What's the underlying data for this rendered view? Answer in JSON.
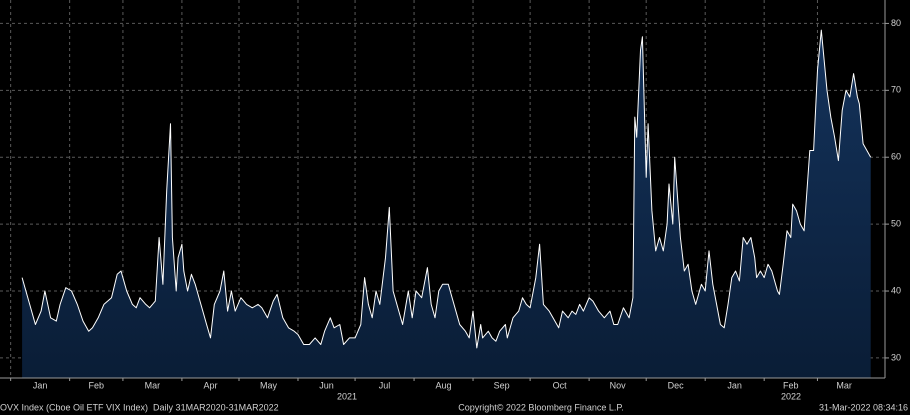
{
  "chart_data": {
    "type": "area",
    "color": "#0c2340",
    "line_color": "#ffffff",
    "grid": true,
    "xlim": [
      -5.6,
      459.5
    ],
    "ylim": [
      27,
      83.5
    ],
    "yticks": [
      30,
      40,
      50,
      60,
      70,
      80
    ],
    "xticks": [
      {
        "value": 0,
        "label": "Jan"
      },
      {
        "value": 31,
        "label": "Feb"
      },
      {
        "value": 59,
        "label": "Mar"
      },
      {
        "value": 90,
        "label": "Apr"
      },
      {
        "value": 120,
        "label": "May"
      },
      {
        "value": 151,
        "label": "Jun"
      },
      {
        "value": 181,
        "label": "Jul"
      },
      {
        "value": 212,
        "label": "Aug"
      },
      {
        "value": 243,
        "label": "Sep"
      },
      {
        "value": 273,
        "label": "Oct"
      },
      {
        "value": 304,
        "label": "Nov"
      },
      {
        "value": 334,
        "label": "Dec"
      },
      {
        "value": 365,
        "label": "Jan"
      },
      {
        "value": 396,
        "label": "Feb"
      },
      {
        "value": 424,
        "label": "Mar"
      }
    ],
    "year_labels": [
      "2021",
      "2022"
    ],
    "x": [
      6,
      10,
      13,
      16,
      18,
      21,
      24,
      26,
      29,
      32,
      35,
      38,
      41,
      43,
      46,
      49,
      53,
      56,
      58,
      61,
      64,
      66,
      68,
      71,
      73,
      76,
      78,
      80,
      82,
      84,
      85,
      87,
      88,
      90,
      91,
      93,
      95,
      97,
      100,
      103,
      105,
      107,
      110,
      112,
      114,
      116,
      118,
      121,
      124,
      127,
      130,
      132,
      135,
      138,
      140,
      143,
      146,
      149,
      151,
      154,
      157,
      160,
      163,
      165,
      168,
      170,
      173,
      175,
      178,
      181,
      184,
      186,
      188,
      190,
      192,
      194,
      197,
      199,
      201,
      203,
      206,
      209,
      211,
      213,
      216,
      218,
      219,
      221,
      223,
      225,
      227,
      230,
      232,
      234,
      236,
      239,
      241,
      243,
      245,
      247,
      248,
      251,
      253,
      255,
      257,
      260,
      261,
      264,
      267,
      269,
      271,
      273,
      276,
      278,
      280,
      283,
      285,
      288,
      290,
      293,
      295,
      297,
      299,
      301,
      304,
      306,
      309,
      312,
      315,
      317,
      319,
      322,
      325,
      327,
      328,
      329,
      331,
      332,
      334,
      335,
      337,
      339,
      341,
      343,
      345,
      346,
      348,
      349,
      351,
      352,
      354,
      356,
      358,
      360,
      363,
      365,
      367,
      369,
      371,
      373,
      375,
      377,
      379,
      381,
      383,
      385,
      387,
      389,
      391,
      392,
      394,
      396,
      398,
      400,
      403,
      404,
      406,
      408,
      410,
      411,
      413,
      415,
      417,
      418,
      420,
      422,
      424,
      426,
      427,
      429,
      431,
      433,
      435,
      437,
      439,
      441,
      443,
      445,
      446,
      448,
      450,
      452
    ],
    "values": [
      42,
      38,
      35,
      37,
      40,
      36,
      35.5,
      38,
      40.5,
      40,
      38,
      35.5,
      34,
      34.5,
      36,
      38,
      39,
      42.5,
      43,
      40,
      38,
      37.5,
      39,
      38,
      37.5,
      38.5,
      48,
      41,
      55,
      65,
      48,
      40,
      45,
      47,
      43,
      40,
      42.5,
      41,
      38,
      35,
      33,
      38,
      40,
      43,
      37,
      40,
      37,
      39,
      38,
      37.5,
      38,
      37.5,
      36,
      38.5,
      39.5,
      36,
      34.5,
      34,
      33.5,
      32,
      32,
      33,
      32,
      34,
      36,
      34.5,
      35,
      32,
      33,
      33,
      35,
      42,
      38,
      36,
      40,
      38,
      45,
      52.5,
      40,
      38,
      35,
      40,
      36,
      40,
      39,
      42,
      43.5,
      38,
      36,
      40,
      41,
      41,
      39,
      37,
      35,
      34,
      33,
      37,
      31.5,
      35,
      33,
      34,
      33,
      32.5,
      34,
      35,
      33,
      36,
      37,
      39,
      38,
      37.5,
      42,
      47,
      38,
      37,
      36,
      34.5,
      37,
      36,
      37,
      36.5,
      38,
      37,
      39,
      38.5,
      37,
      36,
      37,
      35,
      35,
      37.5,
      36,
      39,
      66,
      63,
      76,
      78,
      57,
      65,
      52,
      46,
      48,
      46,
      50,
      56,
      50,
      60,
      52,
      48,
      43,
      44,
      40,
      38,
      41,
      40,
      46,
      41,
      38,
      35,
      34.5,
      38,
      42,
      43,
      41.5,
      48,
      47,
      48,
      45,
      42,
      43,
      42,
      44,
      43,
      40,
      39.5,
      44,
      49,
      48,
      53,
      52,
      50,
      49,
      53,
      61,
      61,
      73,
      79,
      76,
      70,
      66,
      63,
      59.5,
      67,
      70,
      69,
      72.5,
      69,
      68,
      62,
      61,
      60
    ]
  },
  "footer": {
    "left": "OVX Index (Cboe Oil ETF VIX Index)  Daily 31MAR2020-31MAR2022",
    "center": "Copyright© 2022 Bloomberg Finance L.P.",
    "right": "31-Mar-2022 08:34:16"
  }
}
